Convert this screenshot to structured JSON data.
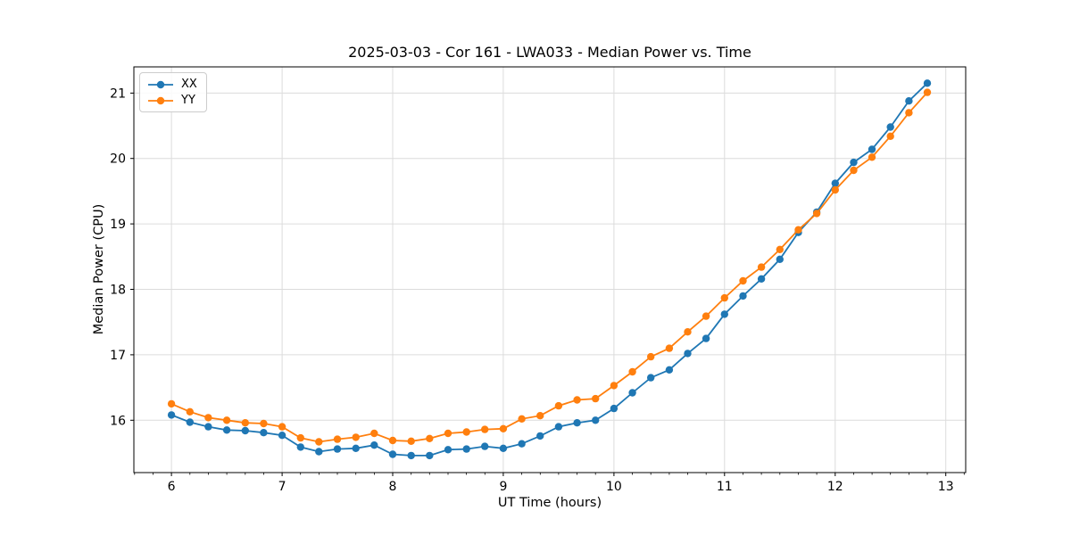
{
  "figure": {
    "title": "2025-03-03 - Cor 161 - LWA033 - Median Power vs. Time"
  },
  "chart_data": {
    "type": "line",
    "title": "2025-03-03 - Cor 161 - LWA033 - Median Power vs. Time",
    "xlabel": "UT Time (hours)",
    "ylabel": "Median Power (CPU)",
    "xlim": [
      5.66,
      13.18
    ],
    "ylim": [
      15.2,
      21.4
    ],
    "xticks": [
      6,
      7,
      8,
      9,
      10,
      11,
      12,
      13
    ],
    "yticks": [
      16,
      17,
      18,
      19,
      20,
      21
    ],
    "x_minor_interval": 0.1667,
    "grid": true,
    "legend_position": "upper left",
    "marker": "o",
    "x": [
      6.0,
      6.167,
      6.333,
      6.5,
      6.667,
      6.833,
      7.0,
      7.167,
      7.333,
      7.5,
      7.667,
      7.833,
      8.0,
      8.167,
      8.333,
      8.5,
      8.667,
      8.833,
      9.0,
      9.167,
      9.333,
      9.5,
      9.667,
      9.833,
      10.0,
      10.167,
      10.333,
      10.5,
      10.667,
      10.833,
      11.0,
      11.167,
      11.333,
      11.5,
      11.667,
      11.833,
      12.0,
      12.167,
      12.333,
      12.5,
      12.667,
      12.833
    ],
    "series": [
      {
        "name": "XX",
        "color": "#1f77b4",
        "values": [
          16.08,
          15.97,
          15.9,
          15.85,
          15.84,
          15.81,
          15.77,
          15.59,
          15.52,
          15.56,
          15.57,
          15.62,
          15.48,
          15.46,
          15.46,
          15.55,
          15.56,
          15.6,
          15.57,
          15.64,
          15.76,
          15.9,
          15.96,
          16.0,
          16.18,
          16.42,
          16.65,
          16.77,
          17.02,
          17.25,
          17.62,
          17.9,
          18.16,
          18.46,
          18.87,
          19.18,
          19.62,
          19.94,
          20.14,
          20.48,
          20.88,
          21.15
        ]
      },
      {
        "name": "YY",
        "color": "#ff7f0e",
        "values": [
          16.25,
          16.13,
          16.04,
          16.0,
          15.96,
          15.95,
          15.9,
          15.73,
          15.67,
          15.71,
          15.74,
          15.8,
          15.69,
          15.68,
          15.72,
          15.8,
          15.82,
          15.86,
          15.87,
          16.02,
          16.07,
          16.22,
          16.31,
          16.33,
          16.53,
          16.74,
          16.97,
          17.1,
          17.35,
          17.59,
          17.87,
          18.13,
          18.34,
          18.61,
          18.91,
          19.16,
          19.52,
          19.82,
          20.02,
          20.34,
          20.7,
          21.01
        ]
      }
    ]
  },
  "colors": {
    "background": "#ffffff",
    "grid": "#dcdcdc",
    "spine": "#000000",
    "text": "#000000",
    "series_xx": "#1f77b4",
    "series_yy": "#ff7f0e"
  }
}
